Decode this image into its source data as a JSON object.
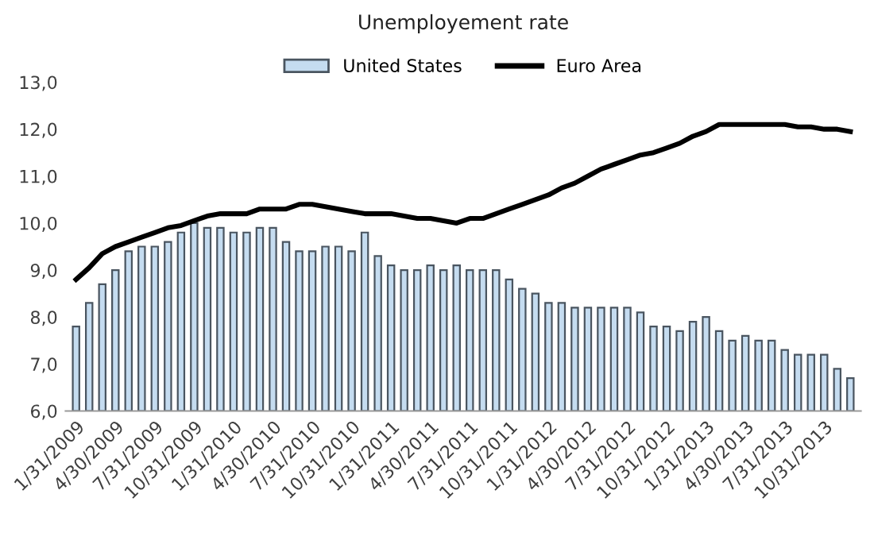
{
  "chart_data": {
    "type": "bar",
    "title": "Unemployement rate",
    "categories": [
      "1/31/2009",
      null,
      null,
      "4/30/2009",
      null,
      null,
      "7/31/2009",
      null,
      null,
      "10/31/2009",
      null,
      null,
      "1/31/2010",
      null,
      null,
      "4/30/2010",
      null,
      null,
      "7/31/2010",
      null,
      null,
      "10/31/2010",
      null,
      null,
      "1/31/2011",
      null,
      null,
      "4/30/2011",
      null,
      null,
      "7/31/2011",
      null,
      null,
      "10/31/2011",
      null,
      null,
      "1/31/2012",
      null,
      null,
      "4/30/2012",
      null,
      null,
      "7/31/2012",
      null,
      null,
      "10/31/2012",
      null,
      null,
      "1/31/2013",
      null,
      null,
      "4/30/2013",
      null,
      null,
      "7/31/2013",
      null,
      null,
      "10/31/2013",
      null,
      null
    ],
    "series": [
      {
        "name": "United States",
        "color": "#c5dcf0",
        "values": [
          7.8,
          8.3,
          8.7,
          9.0,
          9.4,
          9.5,
          9.5,
          9.6,
          9.8,
          10.0,
          9.9,
          9.9,
          9.8,
          9.8,
          9.9,
          9.9,
          9.6,
          9.4,
          9.4,
          9.5,
          9.5,
          9.4,
          9.8,
          9.3,
          9.1,
          9.0,
          9.0,
          9.1,
          9.0,
          9.1,
          9.0,
          9.0,
          9.0,
          8.8,
          8.6,
          8.5,
          8.3,
          8.3,
          8.2,
          8.2,
          8.2,
          8.2,
          8.2,
          8.1,
          7.8,
          7.8,
          7.7,
          7.9,
          8.0,
          7.7,
          7.5,
          7.6,
          7.5,
          7.5,
          7.3,
          7.2,
          7.2,
          7.2,
          6.9,
          6.7
        ]
      },
      {
        "name": "Euro Area",
        "type": "line",
        "color": "#000000",
        "values": [
          8.8,
          9.05,
          9.35,
          9.5,
          9.6,
          9.7,
          9.8,
          9.9,
          9.95,
          10.05,
          10.15,
          10.2,
          10.2,
          10.2,
          10.3,
          10.3,
          10.3,
          10.4,
          10.4,
          10.35,
          10.3,
          10.25,
          10.2,
          10.2,
          10.2,
          10.15,
          10.1,
          10.1,
          10.05,
          10.0,
          10.1,
          10.1,
          10.2,
          10.3,
          10.4,
          10.5,
          10.6,
          10.75,
          10.85,
          11.0,
          11.15,
          11.25,
          11.35,
          11.45,
          11.5,
          11.6,
          11.7,
          11.85,
          11.95,
          12.1,
          12.1,
          12.1,
          12.1,
          12.1,
          12.1,
          12.05,
          12.05,
          12.0,
          12.0,
          11.95
        ]
      }
    ],
    "ylim": [
      6,
      13
    ],
    "yticks": [
      {
        "value": 6,
        "label": "6,0"
      },
      {
        "value": 7,
        "label": "7,0"
      },
      {
        "value": 8,
        "label": "8,0"
      },
      {
        "value": 9,
        "label": "9,0"
      },
      {
        "value": 10,
        "label": "10,0"
      },
      {
        "value": 11,
        "label": "11,0"
      },
      {
        "value": 12,
        "label": "12,0"
      },
      {
        "value": 13,
        "label": "13,0"
      }
    ],
    "grid": false,
    "legend": "top",
    "marker": "none",
    "line_style": "solid"
  }
}
